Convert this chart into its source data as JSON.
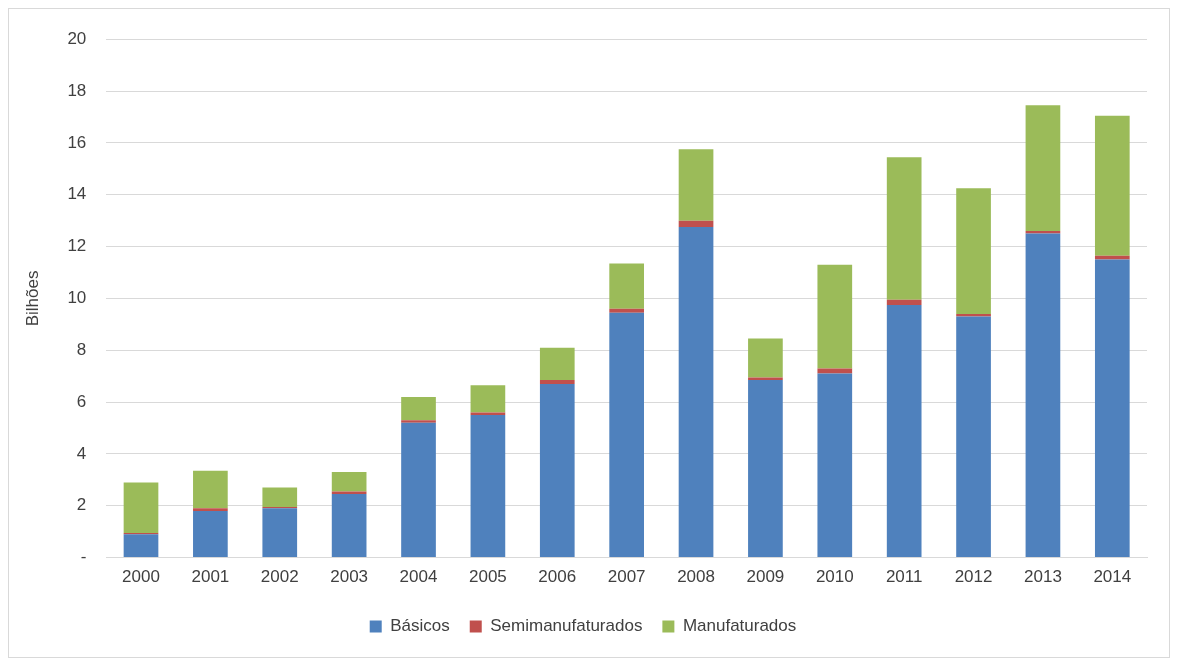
{
  "chart_data": {
    "type": "bar",
    "stacked": true,
    "ylabel": "Bilhões",
    "categories": [
      "2000",
      "2001",
      "2002",
      "2003",
      "2004",
      "2005",
      "2006",
      "2007",
      "2008",
      "2009",
      "2010",
      "2011",
      "2012",
      "2013",
      "2014"
    ],
    "series": [
      {
        "name": "Básicos",
        "color": "#4f81bd",
        "values": [
          0.9,
          1.8,
          1.9,
          2.45,
          5.2,
          5.5,
          6.7,
          9.45,
          12.75,
          6.85,
          7.1,
          9.75,
          9.3,
          12.5,
          11.5
        ]
      },
      {
        "name": "Semimanufaturados",
        "color": "#c0504d",
        "values": [
          0.05,
          0.1,
          0.05,
          0.1,
          0.1,
          0.1,
          0.15,
          0.15,
          0.25,
          0.1,
          0.2,
          0.2,
          0.1,
          0.1,
          0.15
        ]
      },
      {
        "name": "Manufaturados",
        "color": "#9bbb59",
        "values": [
          1.95,
          1.45,
          0.75,
          0.75,
          0.9,
          1.05,
          1.25,
          1.75,
          2.75,
          1.5,
          4.0,
          5.5,
          4.85,
          4.85,
          5.4
        ]
      }
    ],
    "ylim": [
      0,
      20
    ],
    "yticks": [
      {
        "value": 0,
        "label": "-"
      },
      2,
      4,
      6,
      8,
      10,
      12,
      14,
      16,
      18,
      20
    ],
    "grid": "y",
    "legend": "bottom"
  }
}
